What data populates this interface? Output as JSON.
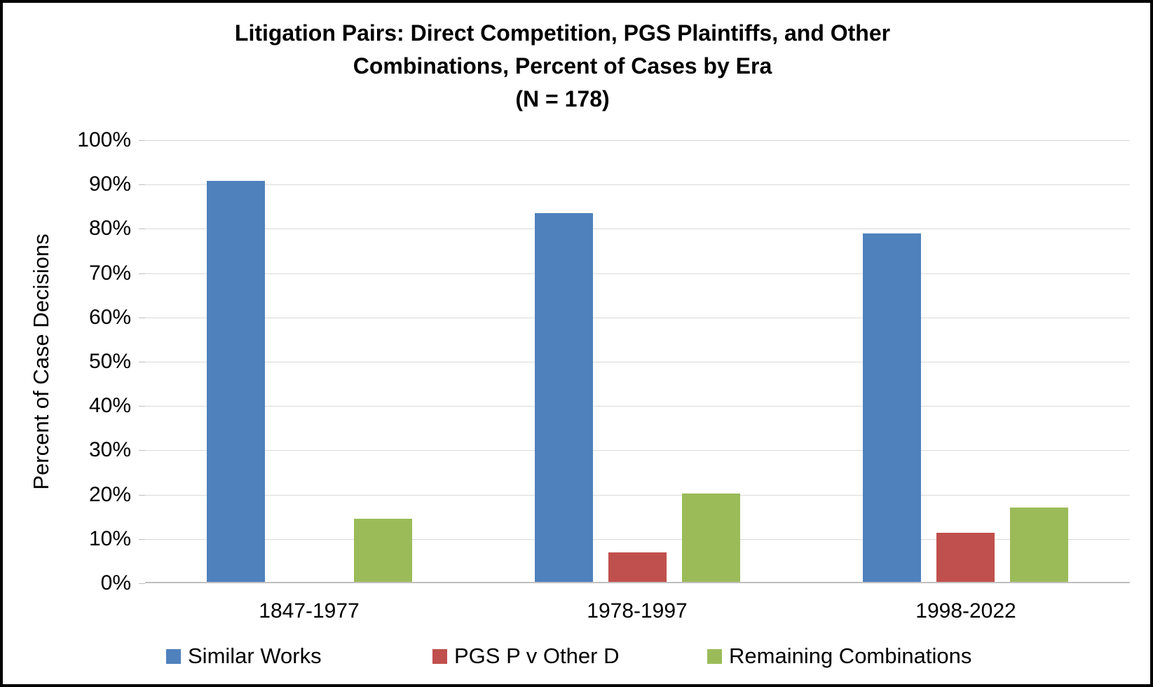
{
  "title": {
    "line1": "Litigation Pairs: Direct Competition, PGS Plaintiffs, and Other",
    "line2": "Combinations, Percent of Cases by Era",
    "line3": "(N = 178)"
  },
  "chart_data": {
    "type": "bar",
    "title": "Litigation Pairs: Direct Competition, PGS Plaintiffs, and Other Combinations, Percent of Cases by Era (N = 178)",
    "categories": [
      "1847-1977",
      "1978-1997",
      "1998-2022"
    ],
    "series": [
      {
        "name": "Similar Works",
        "color": "#4F81BD",
        "values": [
          90.5,
          83.3,
          78.7
        ]
      },
      {
        "name": "PGS P v Other D",
        "color": "#C0504D",
        "values": [
          0,
          6.7,
          11.1
        ]
      },
      {
        "name": "Remaining Combinations",
        "color": "#9BBB59",
        "values": [
          14.3,
          20,
          16.7
        ]
      }
    ],
    "xlabel": "",
    "ylabel": "Percent of Case Decisions",
    "ylim": [
      0,
      100
    ],
    "ytick_step": 10,
    "ytick_labels": [
      "0%",
      "10%",
      "20%",
      "30%",
      "40%",
      "50%",
      "60%",
      "70%",
      "80%",
      "90%",
      "100%"
    ],
    "grid": true,
    "legend_position": "bottom"
  },
  "colors": {
    "gridline": "#D9D9D9",
    "axis_line": "#BFBFBF",
    "text": "#000000",
    "background": "#FFFFFF",
    "frame_border": "#000000"
  }
}
